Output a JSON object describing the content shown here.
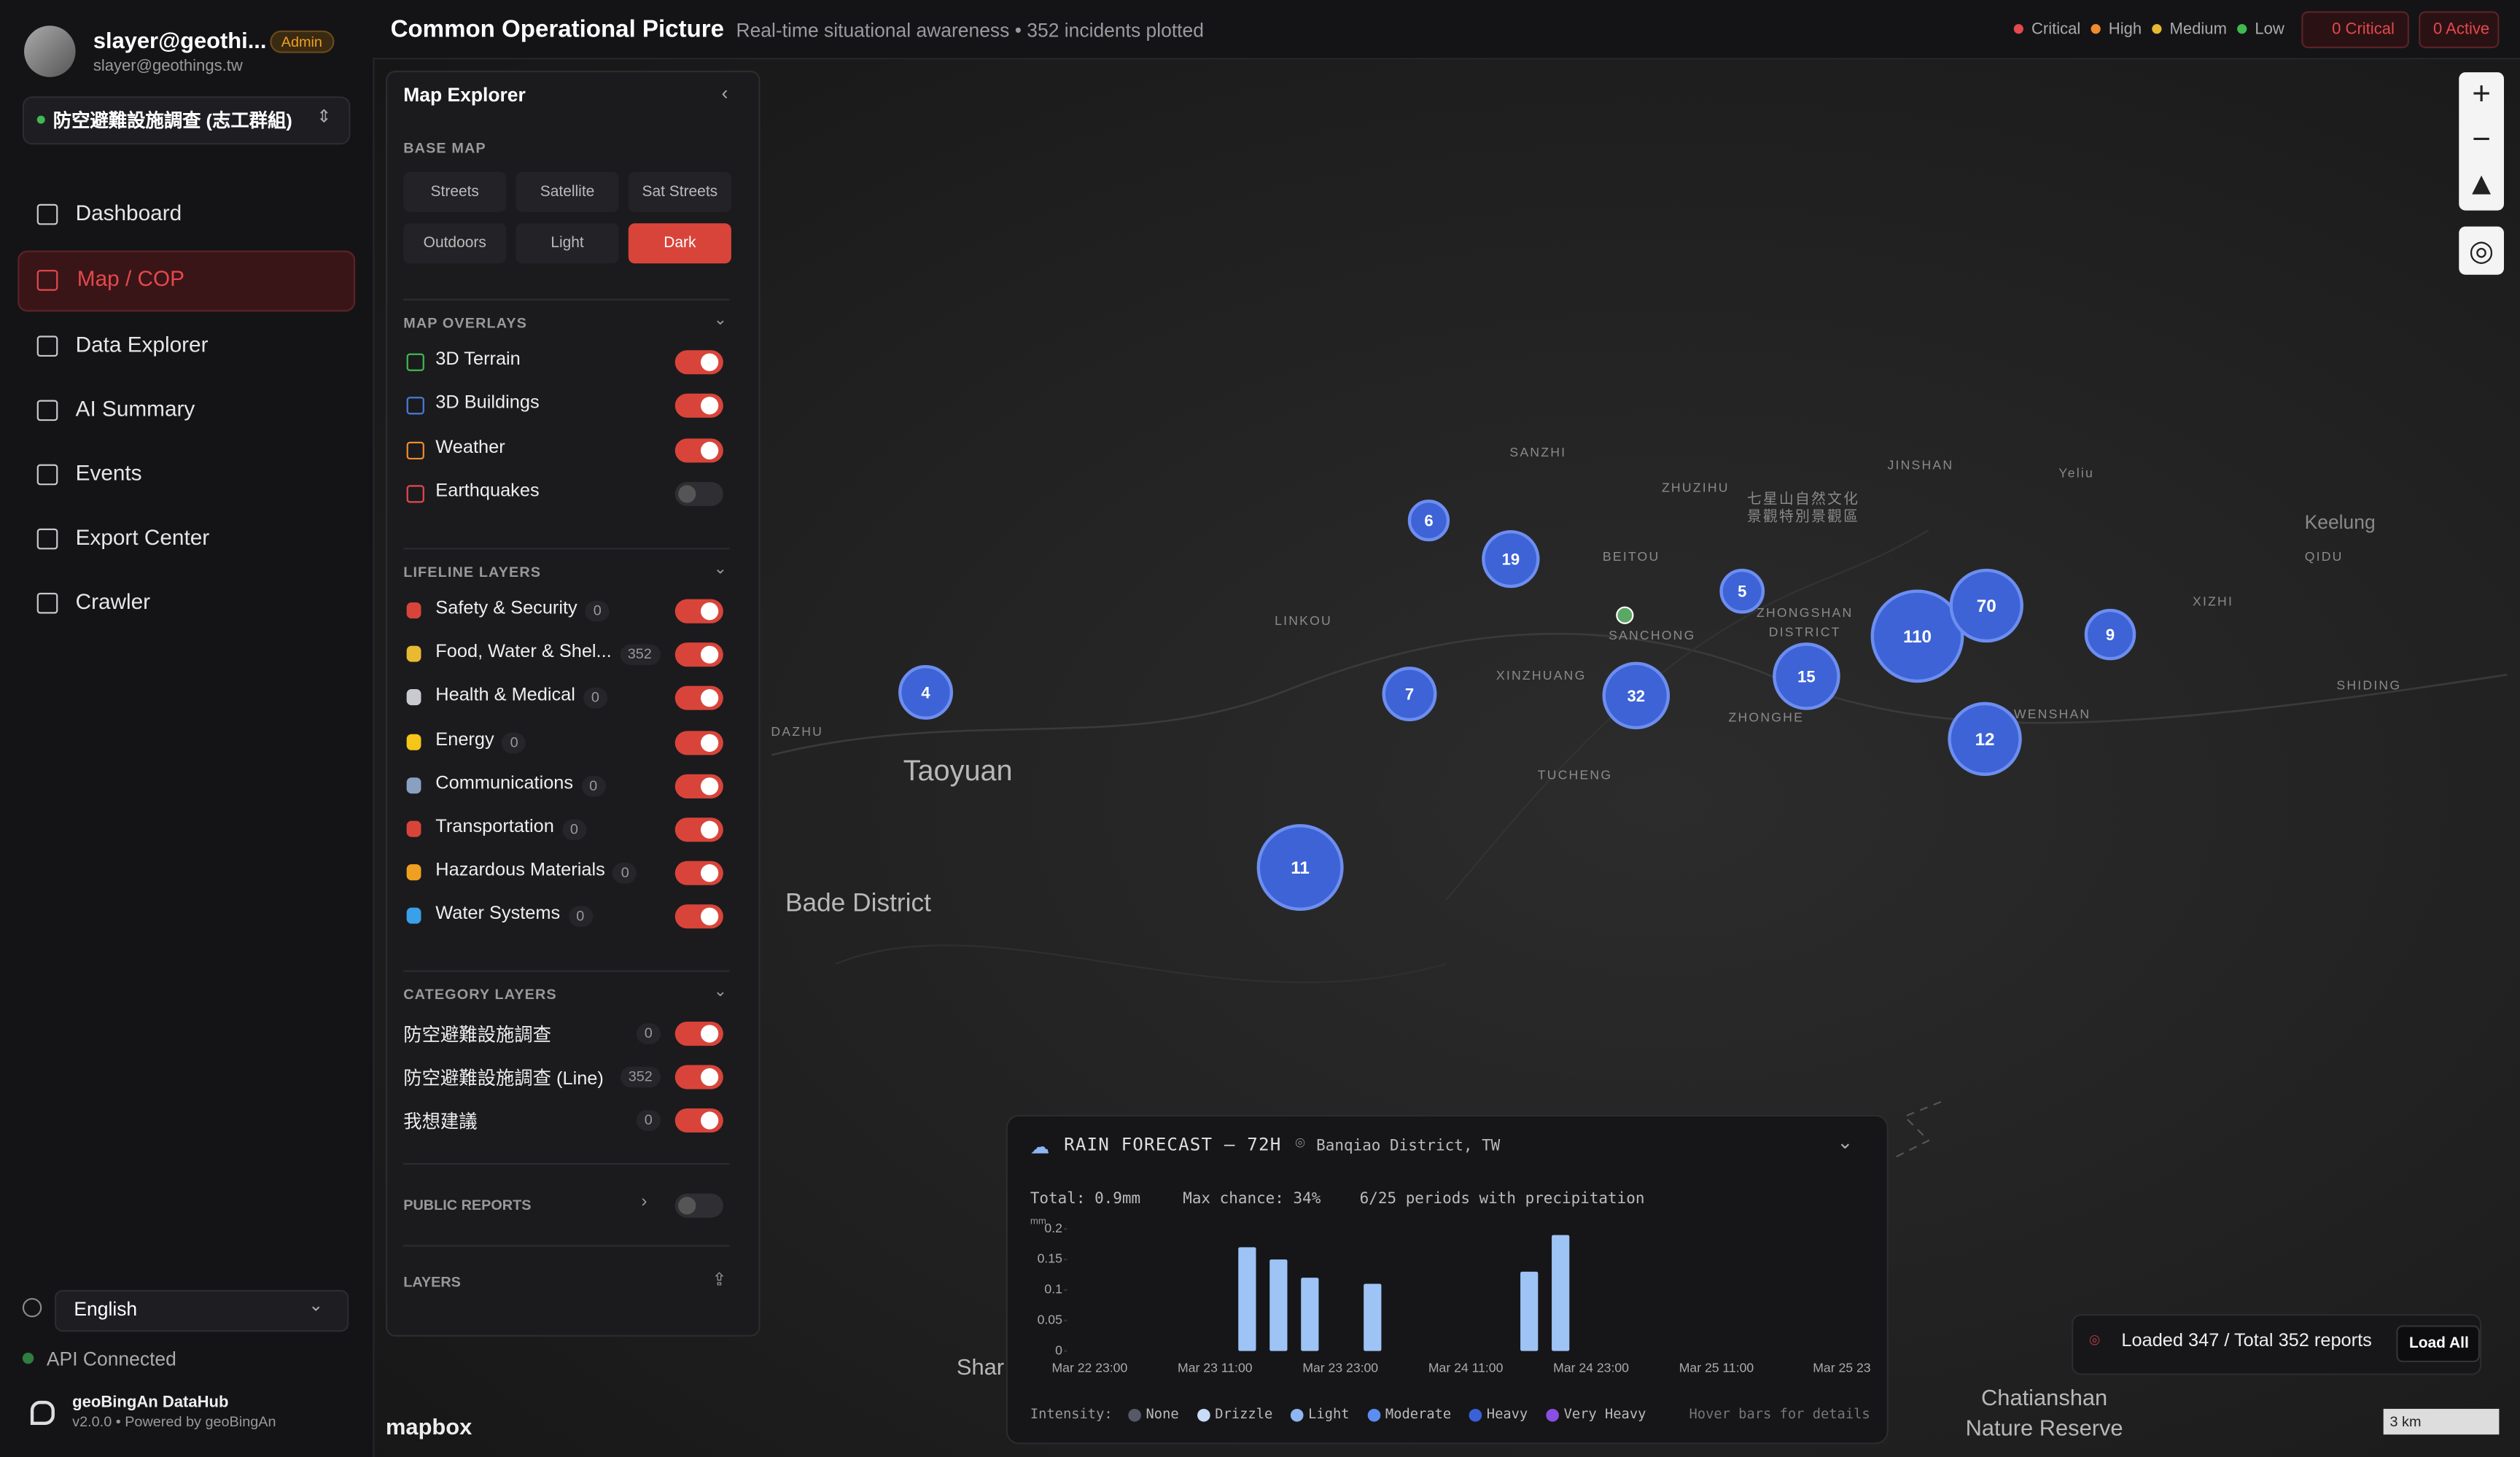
{
  "user": {
    "name": "slayer@geothi...",
    "email": "slayer@geothings.tw",
    "role": "Admin"
  },
  "project": "防空避難設施調查 (志工群組)",
  "nav": [
    {
      "label": "Dashboard",
      "active": false
    },
    {
      "label": "Map / COP",
      "active": true
    },
    {
      "label": "Data Explorer",
      "active": false
    },
    {
      "label": "AI Summary",
      "active": false
    },
    {
      "label": "Events",
      "active": false
    },
    {
      "label": "Export Center",
      "active": false
    },
    {
      "label": "Crawler",
      "active": false
    }
  ],
  "language": "English",
  "api_status": "API Connected",
  "app": {
    "name": "geoBingAn DataHub",
    "version": "v2.0.0 • Powered by geoBingAn"
  },
  "header": {
    "title": "Common Operational Picture",
    "subtitle": "Real-time situational awareness • 352 incidents plotted",
    "legend": [
      {
        "label": "Critical",
        "color": "#e5484d"
      },
      {
        "label": "High",
        "color": "#f08c2e"
      },
      {
        "label": "Medium",
        "color": "#e8b931"
      },
      {
        "label": "Low",
        "color": "#3fb950"
      }
    ],
    "badges": [
      "0 Critical",
      "0 Active"
    ]
  },
  "explorer": {
    "title": "Map Explorer",
    "base_map_heading": "BASE MAP",
    "base_maps": [
      {
        "label": "Streets",
        "active": false
      },
      {
        "label": "Satellite",
        "active": false
      },
      {
        "label": "Sat Streets",
        "active": false
      },
      {
        "label": "Outdoors",
        "active": false
      },
      {
        "label": "Light",
        "active": false
      },
      {
        "label": "Dark",
        "active": true
      }
    ],
    "overlays_heading": "MAP OVERLAYS",
    "overlays": [
      {
        "label": "3D Terrain",
        "on": true,
        "color": "#3fb950"
      },
      {
        "label": "3D Buildings",
        "on": true,
        "color": "#4a7bd8"
      },
      {
        "label": "Weather",
        "on": true,
        "color": "#f08c2e"
      },
      {
        "label": "Earthquakes",
        "on": false,
        "color": "#e5484d"
      }
    ],
    "lifeline_heading": "LIFELINE LAYERS",
    "lifeline": [
      {
        "label": "Safety & Security",
        "count": 0,
        "on": true,
        "color": "#d9443a"
      },
      {
        "label": "Food, Water & Shel...",
        "count": 352,
        "on": true,
        "color": "#e8b931"
      },
      {
        "label": "Health & Medical",
        "count": 0,
        "on": true,
        "color": "#c9c9d0"
      },
      {
        "label": "Energy",
        "count": 0,
        "on": true,
        "color": "#f5c518"
      },
      {
        "label": "Communications",
        "count": 0,
        "on": true,
        "color": "#8aa0c0"
      },
      {
        "label": "Transportation",
        "count": 0,
        "on": true,
        "color": "#d9443a"
      },
      {
        "label": "Hazardous Materials",
        "count": 0,
        "on": true,
        "color": "#f0a020"
      },
      {
        "label": "Water Systems",
        "count": 0,
        "on": true,
        "color": "#3aa0e8"
      }
    ],
    "category_heading": "CATEGORY LAYERS",
    "category": [
      {
        "label": "防空避難設施調查",
        "count": 0,
        "on": true
      },
      {
        "label": "防空避難設施調查 (Line)",
        "count": 352,
        "on": true
      },
      {
        "label": "我想建議",
        "count": 0,
        "on": true
      }
    ],
    "public_reports": {
      "label": "PUBLIC REPORTS",
      "on": false
    },
    "layers_heading": "LAYERS"
  },
  "map": {
    "places": [
      "SANZHI",
      "ZHUZIHU",
      "七星山自然文化",
      "景觀特別景觀區",
      "JINSHAN",
      "Yeliu",
      "Keelung",
      "QIDU",
      "XIZHI",
      "SHIDING",
      "BEITOU",
      "LINKOU",
      "SANCHONG",
      "ZHONGSHAN",
      "DISTRICT",
      "XINZHUANG",
      "ZHONGHE",
      "WENSHAN",
      "TUCHENG",
      "DAZHU",
      "Taoyuan",
      "Bade District",
      "Shar",
      "Chatianshan",
      "Nature Reserve"
    ],
    "clusters": [
      6,
      19,
      5,
      110,
      70,
      9,
      15,
      12,
      32,
      7,
      4,
      11
    ],
    "brand": "mapbox",
    "scale": "3 km"
  },
  "rain": {
    "title": "RAIN FORECAST — 72H",
    "location": "Banqiao District, TW",
    "total": "Total: 0.9mm",
    "max_chance": "Max chance: 34%",
    "periods": "6/25 periods with precipitation",
    "unit": "mm",
    "chart_data": {
      "type": "bar",
      "color": "#9ec3f5",
      "categories": [
        "Mar 22 23:00",
        null,
        null,
        null,
        "Mar 23 11:00",
        null,
        null,
        null,
        "Mar 23 23:00",
        null,
        null,
        null,
        "Mar 24 11:00",
        null,
        null,
        null,
        "Mar 24 23:00",
        null,
        null,
        null,
        "Mar 25 11:00",
        null,
        null,
        null,
        "Mar 25 23"
      ],
      "values": [
        0,
        0,
        0,
        0,
        0,
        0.17,
        0.15,
        0.12,
        0,
        0.11,
        0,
        0,
        0,
        0,
        0.13,
        0.19,
        0,
        0,
        0,
        0,
        0,
        0,
        0,
        0,
        0
      ],
      "ylim": [
        0,
        0.2
      ],
      "yticks": [
        0,
        0.05,
        0.1,
        0.15,
        0.2
      ]
    },
    "intensity_label": "Intensity:",
    "intensity": [
      {
        "label": "None",
        "color": "#555a66"
      },
      {
        "label": "Drizzle",
        "color": "#c8dcf8"
      },
      {
        "label": "Light",
        "color": "#8fb6f0"
      },
      {
        "label": "Moderate",
        "color": "#5b8ef0"
      },
      {
        "label": "Heavy",
        "color": "#3a62d8"
      },
      {
        "label": "Very Heavy",
        "color": "#8a4fe0"
      }
    ],
    "hint": "Hover bars for details"
  },
  "status": {
    "loaded": "Loaded 347 / Total 352 reports",
    "button": "Load All"
  }
}
